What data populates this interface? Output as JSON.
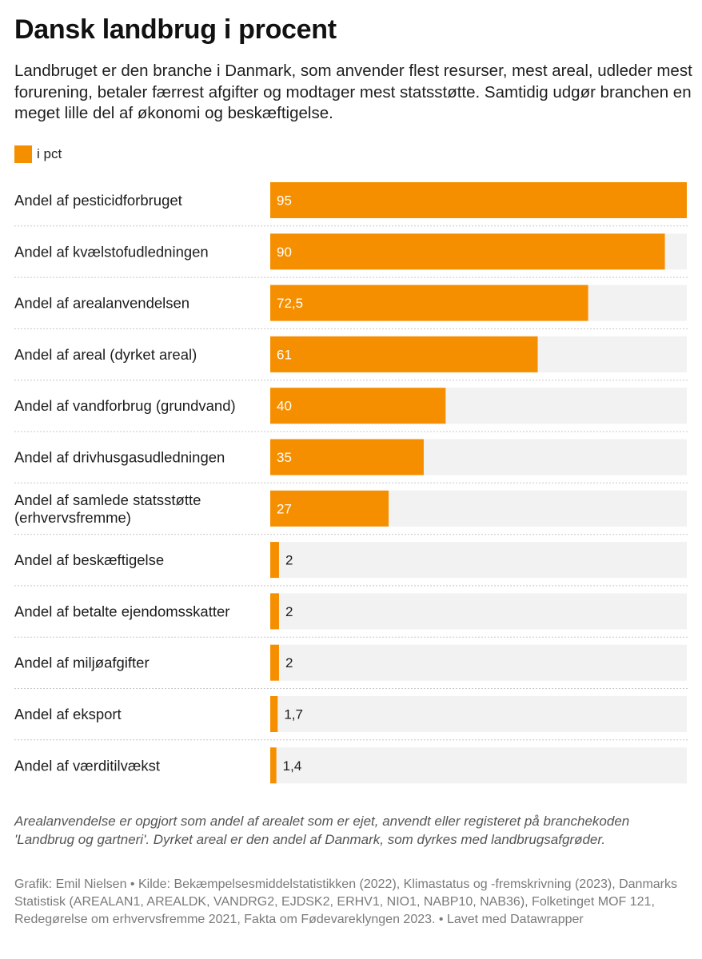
{
  "chart_data": {
    "type": "bar",
    "orientation": "horizontal",
    "title": "Dansk landbrug i procent",
    "subtitle": "Landbruget er den branche i Danmark, som anvender flest resurser, mest areal, udleder mest forurening, betaler færrest afgifter og modtager mest statsstøtte. Samtidig udgør branchen en meget lille del af økonomi og beskæftigelse.",
    "legend": "i pct",
    "xlim": [
      0,
      95
    ],
    "series_color": "#f58f00",
    "track_color": "#f2f2f2",
    "categories": [
      "Andel af pesticidforbruget",
      "Andel af kvælstofudledningen",
      "Andel af arealanvendelsen",
      "Andel af areal (dyrket areal)",
      "Andel af vandforbrug (grundvand)",
      "Andel af drivhusgasudledningen",
      [
        "Andel af samlede statsstøtte",
        "(erhvervsfremme)"
      ],
      "Andel af beskæftigelse",
      "Andel af betalte ejendomsskatter",
      "Andel af miljøafgifter",
      "Andel af eksport",
      "Andel af værditilvækst"
    ],
    "values": [
      95,
      90,
      72.5,
      61,
      40,
      35,
      27,
      2,
      2,
      2,
      1.7,
      1.4
    ],
    "value_labels": [
      "95",
      "90",
      "72,5",
      "61",
      "40",
      "35",
      "27",
      "2",
      "2",
      "2",
      "1,7",
      "1,4"
    ]
  },
  "notes": "Arealanvendelse er opgjort som andel af arealet som er ejet, anvendt eller registeret på branchekoden 'Landbrug og gartneri'. Dyrket areal er den andel af Danmark, som dyrkes med landbrugsafgrøder.",
  "source": "Grafik: Emil Nielsen  • Kilde: Bekæmpelsesmiddelstatistikken (2022), Klimastatus og -fremskrivning (2023),  Danmarks Statistisk (AREALAN1, AREALDK, VANDRG2, EJDSK2, ERHV1, NIO1, NABP10, NAB36), Folketinget MOF 121, Redegørelse om erhvervsfremme 2021, Fakta om Fødevareklyngen 2023.  • Lavet med Datawrapper"
}
